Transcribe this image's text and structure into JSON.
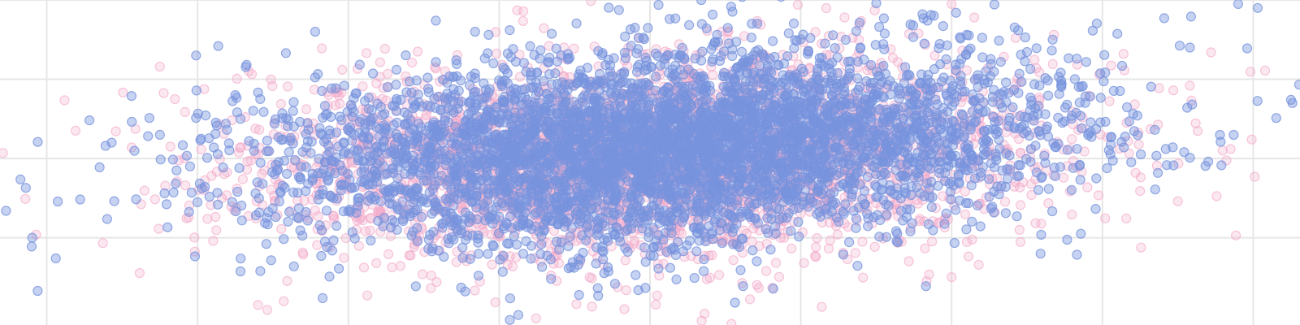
{
  "chart_data": {
    "type": "scatter",
    "title": "",
    "xlabel": "",
    "ylabel": "",
    "grid": true,
    "x_gridlines": [
      -40,
      -30,
      -20,
      -10,
      0,
      10,
      20,
      30,
      40
    ],
    "y_gridlines": [
      -10,
      0,
      10,
      20
    ],
    "xlim": [
      -43.1,
      43.1
    ],
    "ylim": [
      -21.0,
      20.0
    ],
    "colors": {
      "pink": "#f2a8c8",
      "blue": "#7893dd",
      "grid": "#e6e6e6"
    },
    "series": [
      {
        "color_key": "pink",
        "approx_point_count": 3000,
        "center": [
          0,
          0
        ],
        "spread": [
          13.0,
          6.2
        ],
        "correlation": 0.12,
        "marker": "circle",
        "opacity": 0.28,
        "sample_points": [
          [
            -42.9,
            0.7
          ],
          [
            -32.5,
            11.6
          ],
          [
            -31.5,
            7.5
          ],
          [
            -31.8,
            1.5
          ],
          [
            -28.5,
            4.3
          ],
          [
            -26.6,
            11.0
          ],
          [
            -21.3,
            8.0
          ],
          [
            -20.4,
            11.2
          ],
          [
            -8.4,
            18.6
          ],
          [
            -5.7,
            14.0
          ],
          [
            -1.7,
            -19.0
          ],
          [
            4.6,
            14.2
          ],
          [
            4.9,
            13.1
          ],
          [
            9.8,
            19.4
          ],
          [
            12.9,
            17.8
          ],
          [
            14.9,
            18.7
          ],
          [
            20.0,
            19.5
          ],
          [
            21.5,
            17.8
          ],
          [
            29.8,
            10.6
          ],
          [
            31.4,
            13.2
          ],
          [
            31.6,
            4.5
          ],
          [
            31.7,
            2.2
          ],
          [
            34.7,
            8.6
          ],
          [
            35.8,
            9.2
          ],
          [
            35.9,
            7.3
          ],
          [
            37.2,
            13.4
          ],
          [
            38.5,
            1.2
          ],
          [
            39.9,
            2.4
          ],
          [
            40.1,
            -2.3
          ],
          [
            32.5,
            -4.1
          ],
          [
            24.5,
            -9.0
          ],
          [
            21.8,
            -13.4
          ]
        ]
      },
      {
        "color_key": "blue",
        "approx_point_count": 5000,
        "center": [
          1.0,
          1.5
        ],
        "spread": [
          12.5,
          6.0
        ],
        "correlation": 0.22,
        "marker": "circle",
        "opacity": 0.42,
        "sample_points": [
          [
            -42.7,
            -6.6
          ],
          [
            -41.0,
            -11.1
          ],
          [
            -40.6,
            -16.7
          ],
          [
            -39.4,
            -12.6
          ],
          [
            -36.1,
            1.6
          ],
          [
            -35.7,
            2.0
          ],
          [
            -32.5,
            3.0
          ],
          [
            -30.1,
            13.0
          ],
          [
            -27.5,
            8.0
          ],
          [
            -22.2,
            16.0
          ],
          [
            -14.2,
            17.4
          ],
          [
            -11.6,
            16.0
          ],
          [
            -10.7,
            15.6
          ],
          [
            -9.3,
            16.2
          ],
          [
            -1.0,
            16.5
          ],
          [
            1.3,
            17.6
          ],
          [
            3.4,
            20.0
          ],
          [
            4.9,
            13.5
          ],
          [
            9.2,
            15.8
          ],
          [
            11.6,
            14.5
          ],
          [
            18.4,
            17.4
          ],
          [
            21.0,
            15.6
          ],
          [
            23.6,
            9.6
          ],
          [
            24.6,
            13.1
          ],
          [
            26.7,
            15.0
          ],
          [
            28.3,
            12.6
          ],
          [
            31.3,
            11.7
          ],
          [
            34.1,
            17.7
          ],
          [
            35.8,
            14.0
          ],
          [
            39.0,
            19.5
          ],
          [
            39.6,
            13.9
          ],
          [
            40.3,
            19.0
          ],
          [
            42.5,
            7.4
          ],
          [
            42.6,
            7.0
          ],
          [
            34.2,
            1.2
          ],
          [
            35.8,
            0.1
          ],
          [
            33.5,
            -3.9
          ],
          [
            25.9,
            -12.0
          ],
          [
            18.3,
            -16.1
          ]
        ]
      }
    ]
  }
}
